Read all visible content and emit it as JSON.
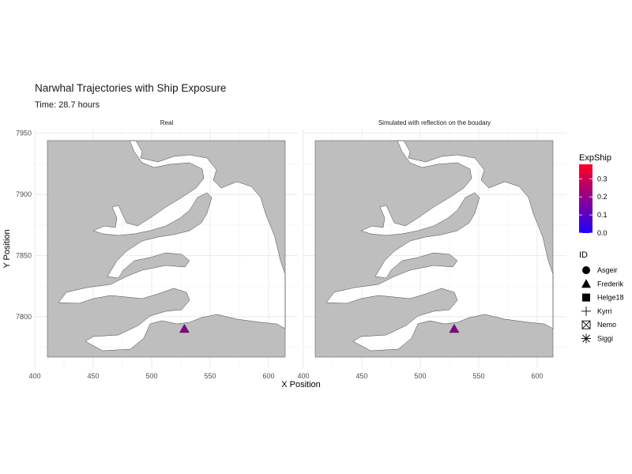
{
  "title": "Narwhal Trajectories with Ship Exposure",
  "subtitle": "Time: 28.7 hours",
  "chart_data": {
    "type": "scatter",
    "xlabel": "X Position",
    "ylabel": "Y Position",
    "xlim": [
      400,
      625
    ],
    "ylim": [
      7758,
      7953
    ],
    "x_ticks": [
      400,
      450,
      500,
      550,
      600
    ],
    "y_ticks": [
      7800,
      7850,
      7900,
      7950
    ],
    "grid": true,
    "facets": [
      {
        "label": "Real",
        "points": [
          {
            "id": "Frederik",
            "x": 528,
            "y": 7790,
            "expship": 0.18
          }
        ]
      },
      {
        "label": "Simulated with reflection on the boudary",
        "points": [
          {
            "id": "Frederik",
            "x": 529,
            "y": 7790,
            "expship": 0.18
          }
        ]
      }
    ],
    "colorbar": {
      "title": "ExpShip",
      "ticks": [
        "0.0",
        "0.1",
        "0.2",
        "0.3"
      ],
      "min": 0.0,
      "max": 0.38,
      "low_color": "#1f00ff",
      "high_color": "#ff0022"
    },
    "legend": {
      "title": "ID",
      "placement": "right",
      "items": [
        {
          "label": "Asgeir",
          "shape": "circle"
        },
        {
          "label": "Frederik",
          "shape": "triangle"
        },
        {
          "label": "Helge18",
          "shape": "square"
        },
        {
          "label": "Kyrri",
          "shape": "plus"
        },
        {
          "label": "Nemo",
          "shape": "square-cross"
        },
        {
          "label": "Siggi",
          "shape": "asterisk"
        }
      ]
    },
    "land_color": "#bebebe"
  }
}
